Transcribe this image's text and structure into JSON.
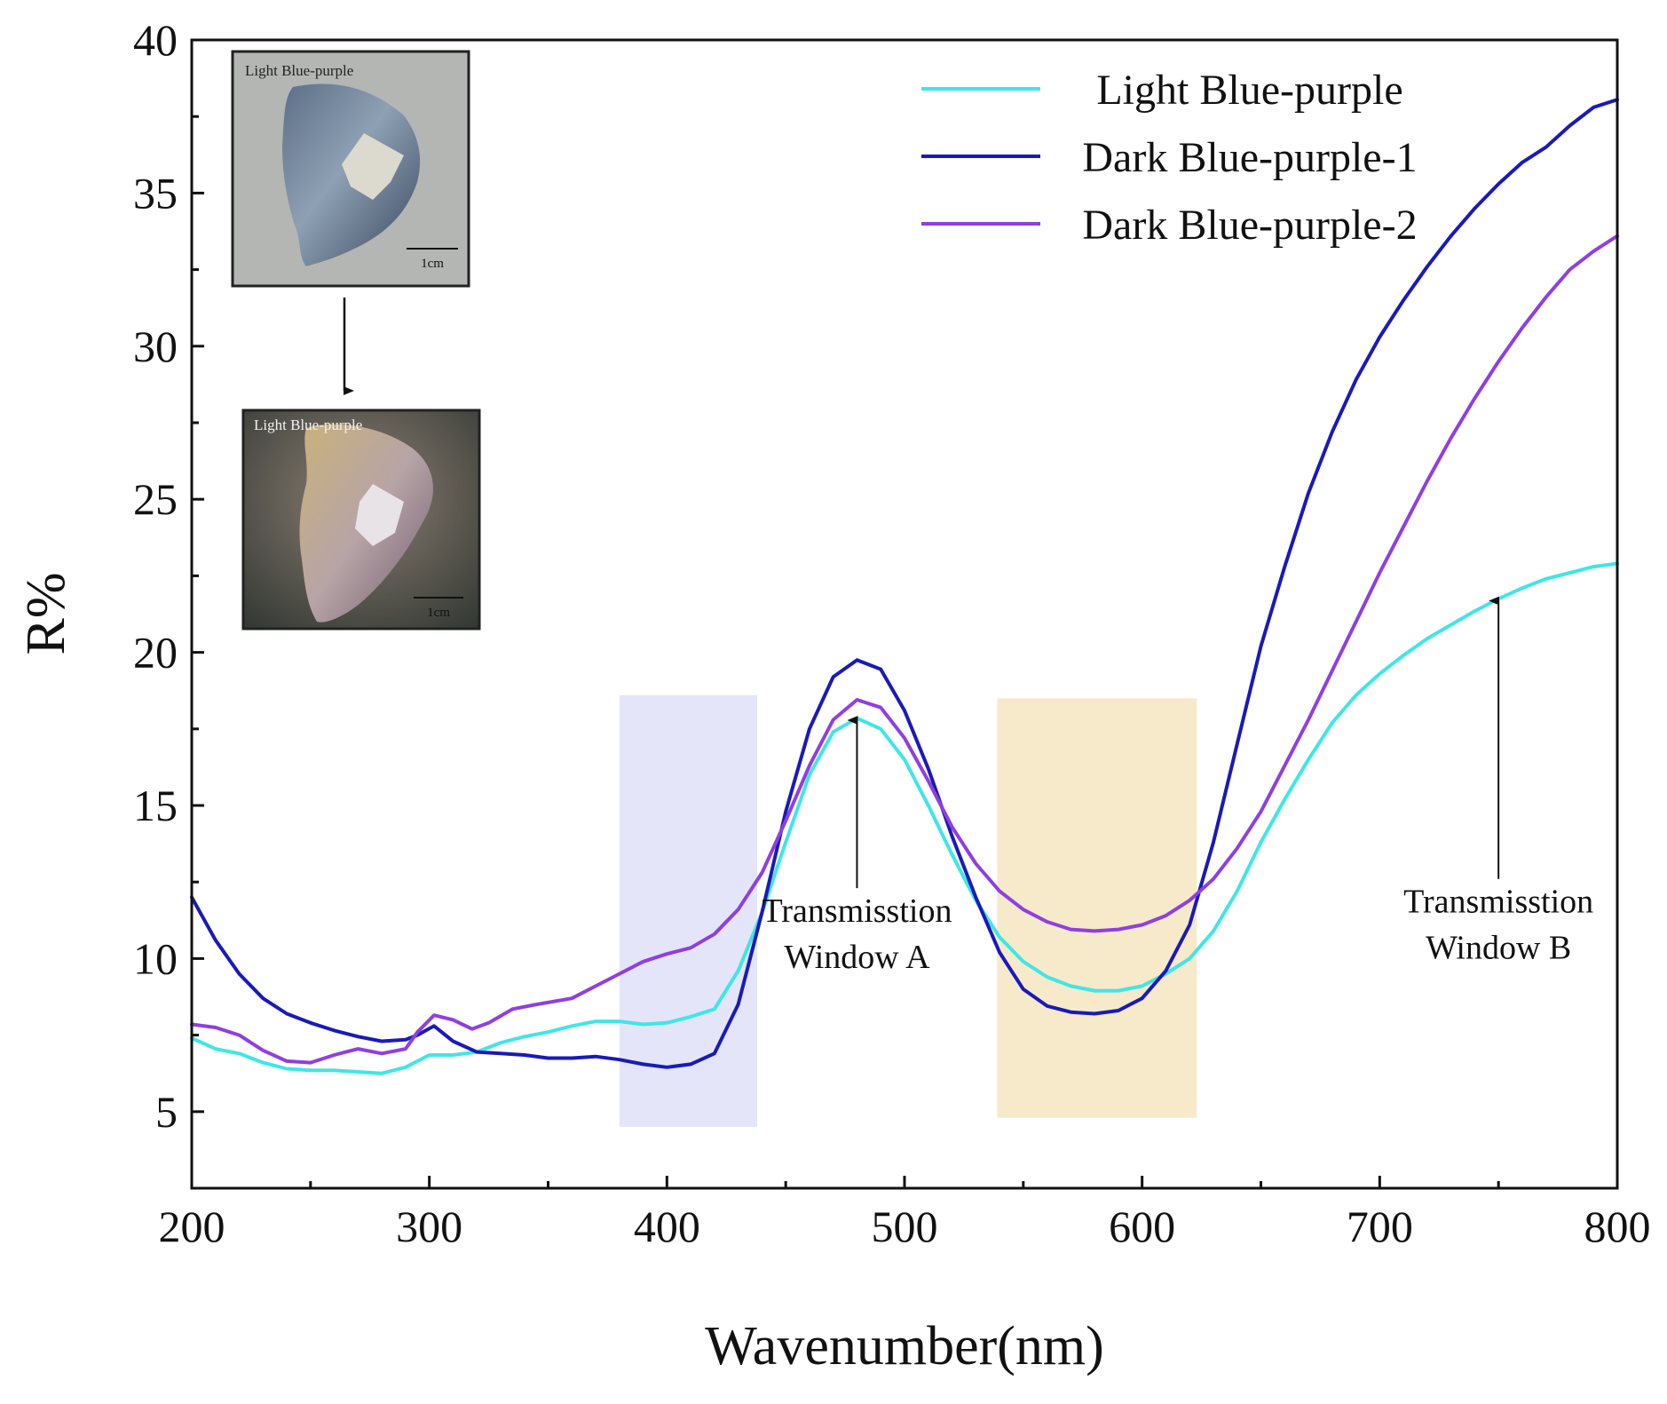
{
  "chart_data": {
    "type": "line",
    "title": "",
    "xlabel": "Wavenumber(nm)",
    "ylabel": "R%",
    "xlim": [
      200,
      800
    ],
    "ylim": [
      2.5,
      40
    ],
    "xticks": [
      200,
      300,
      400,
      500,
      600,
      700,
      800
    ],
    "yticks": [
      5,
      10,
      15,
      20,
      25,
      30,
      35,
      40
    ],
    "legend_position": "top-right",
    "series": [
      {
        "name": "Light Blue-purple",
        "color": "#40e6e6",
        "points": [
          [
            200,
            7.4
          ],
          [
            210,
            7.05
          ],
          [
            220,
            6.9
          ],
          [
            230,
            6.6
          ],
          [
            240,
            6.4
          ],
          [
            250,
            6.35
          ],
          [
            260,
            6.35
          ],
          [
            270,
            6.3
          ],
          [
            280,
            6.25
          ],
          [
            290,
            6.45
          ],
          [
            300,
            6.85
          ],
          [
            310,
            6.85
          ],
          [
            320,
            6.95
          ],
          [
            330,
            7.25
          ],
          [
            340,
            7.45
          ],
          [
            350,
            7.6
          ],
          [
            360,
            7.8
          ],
          [
            370,
            7.95
          ],
          [
            380,
            7.95
          ],
          [
            390,
            7.85
          ],
          [
            400,
            7.9
          ],
          [
            410,
            8.1
          ],
          [
            420,
            8.35
          ],
          [
            430,
            9.6
          ],
          [
            440,
            11.5
          ],
          [
            450,
            13.8
          ],
          [
            460,
            16.0
          ],
          [
            470,
            17.4
          ],
          [
            480,
            17.85
          ],
          [
            490,
            17.5
          ],
          [
            500,
            16.5
          ],
          [
            510,
            15.0
          ],
          [
            520,
            13.4
          ],
          [
            530,
            11.9
          ],
          [
            540,
            10.7
          ],
          [
            550,
            9.9
          ],
          [
            560,
            9.4
          ],
          [
            570,
            9.1
          ],
          [
            580,
            8.95
          ],
          [
            590,
            8.95
          ],
          [
            600,
            9.1
          ],
          [
            610,
            9.5
          ],
          [
            620,
            10.0
          ],
          [
            630,
            10.9
          ],
          [
            640,
            12.2
          ],
          [
            650,
            13.8
          ],
          [
            660,
            15.2
          ],
          [
            670,
            16.5
          ],
          [
            680,
            17.7
          ],
          [
            690,
            18.6
          ],
          [
            700,
            19.3
          ],
          [
            710,
            19.9
          ],
          [
            720,
            20.45
          ],
          [
            730,
            20.9
          ],
          [
            740,
            21.35
          ],
          [
            750,
            21.75
          ],
          [
            760,
            22.1
          ],
          [
            770,
            22.4
          ],
          [
            780,
            22.6
          ],
          [
            790,
            22.8
          ],
          [
            800,
            22.9
          ]
        ]
      },
      {
        "name": "Dark Blue-purple-1",
        "color": "#1a1ab8",
        "points": [
          [
            200,
            12.0
          ],
          [
            210,
            10.6
          ],
          [
            220,
            9.5
          ],
          [
            230,
            8.7
          ],
          [
            240,
            8.2
          ],
          [
            250,
            7.9
          ],
          [
            260,
            7.65
          ],
          [
            270,
            7.45
          ],
          [
            280,
            7.3
          ],
          [
            290,
            7.35
          ],
          [
            295,
            7.5
          ],
          [
            302,
            7.8
          ],
          [
            310,
            7.3
          ],
          [
            320,
            6.95
          ],
          [
            330,
            6.9
          ],
          [
            340,
            6.85
          ],
          [
            350,
            6.75
          ],
          [
            360,
            6.75
          ],
          [
            370,
            6.8
          ],
          [
            380,
            6.7
          ],
          [
            390,
            6.55
          ],
          [
            400,
            6.45
          ],
          [
            410,
            6.55
          ],
          [
            420,
            6.9
          ],
          [
            430,
            8.5
          ],
          [
            440,
            11.5
          ],
          [
            450,
            14.8
          ],
          [
            460,
            17.5
          ],
          [
            470,
            19.2
          ],
          [
            480,
            19.75
          ],
          [
            490,
            19.45
          ],
          [
            500,
            18.1
          ],
          [
            510,
            16.2
          ],
          [
            520,
            14.0
          ],
          [
            530,
            12.0
          ],
          [
            540,
            10.2
          ],
          [
            550,
            9.0
          ],
          [
            560,
            8.45
          ],
          [
            570,
            8.25
          ],
          [
            580,
            8.2
          ],
          [
            590,
            8.3
          ],
          [
            600,
            8.7
          ],
          [
            610,
            9.6
          ],
          [
            620,
            11.1
          ],
          [
            630,
            13.8
          ],
          [
            640,
            17.0
          ],
          [
            650,
            20.2
          ],
          [
            660,
            22.8
          ],
          [
            670,
            25.2
          ],
          [
            680,
            27.2
          ],
          [
            690,
            28.9
          ],
          [
            700,
            30.3
          ],
          [
            710,
            31.5
          ],
          [
            720,
            32.6
          ],
          [
            730,
            33.6
          ],
          [
            740,
            34.5
          ],
          [
            750,
            35.3
          ],
          [
            760,
            36.0
          ],
          [
            770,
            36.5
          ],
          [
            780,
            37.2
          ],
          [
            790,
            37.8
          ],
          [
            800,
            38.05
          ]
        ]
      },
      {
        "name": "Dark Blue-purple-2",
        "color": "#8f3fe0",
        "points": [
          [
            200,
            7.85
          ],
          [
            210,
            7.75
          ],
          [
            220,
            7.5
          ],
          [
            230,
            7.0
          ],
          [
            240,
            6.65
          ],
          [
            250,
            6.6
          ],
          [
            260,
            6.85
          ],
          [
            270,
            7.05
          ],
          [
            280,
            6.9
          ],
          [
            290,
            7.05
          ],
          [
            295,
            7.6
          ],
          [
            302,
            8.15
          ],
          [
            310,
            8.0
          ],
          [
            318,
            7.7
          ],
          [
            325,
            7.9
          ],
          [
            335,
            8.35
          ],
          [
            345,
            8.5
          ],
          [
            360,
            8.7
          ],
          [
            370,
            9.1
          ],
          [
            380,
            9.5
          ],
          [
            390,
            9.9
          ],
          [
            400,
            10.15
          ],
          [
            410,
            10.35
          ],
          [
            420,
            10.8
          ],
          [
            430,
            11.6
          ],
          [
            440,
            12.8
          ],
          [
            450,
            14.5
          ],
          [
            460,
            16.3
          ],
          [
            470,
            17.8
          ],
          [
            480,
            18.45
          ],
          [
            490,
            18.2
          ],
          [
            500,
            17.2
          ],
          [
            510,
            15.8
          ],
          [
            520,
            14.3
          ],
          [
            530,
            13.1
          ],
          [
            540,
            12.2
          ],
          [
            550,
            11.6
          ],
          [
            560,
            11.2
          ],
          [
            570,
            10.95
          ],
          [
            580,
            10.9
          ],
          [
            590,
            10.95
          ],
          [
            600,
            11.1
          ],
          [
            610,
            11.4
          ],
          [
            620,
            11.9
          ],
          [
            630,
            12.6
          ],
          [
            640,
            13.6
          ],
          [
            650,
            14.8
          ],
          [
            660,
            16.3
          ],
          [
            670,
            17.8
          ],
          [
            680,
            19.4
          ],
          [
            690,
            21.0
          ],
          [
            700,
            22.6
          ],
          [
            710,
            24.1
          ],
          [
            720,
            25.6
          ],
          [
            730,
            27.0
          ],
          [
            740,
            28.3
          ],
          [
            750,
            29.5
          ],
          [
            760,
            30.6
          ],
          [
            770,
            31.6
          ],
          [
            780,
            32.5
          ],
          [
            790,
            33.1
          ],
          [
            800,
            33.6
          ]
        ]
      }
    ],
    "highlight_bands": [
      {
        "x_range": [
          380,
          438
        ],
        "y_range": [
          4.5,
          18.6
        ],
        "color": "#e4e5f8"
      },
      {
        "x_range": [
          539,
          623
        ],
        "y_range": [
          4.8,
          18.5
        ],
        "color": "#f6eaca"
      }
    ],
    "annotations": [
      {
        "id": "window-a",
        "lines": [
          "Transmisstion",
          "Window A"
        ],
        "arrow_x": 480,
        "arrow_from_y": 12.3,
        "arrow_to_y": 17.9,
        "text_x": 480,
        "text_y_top": 11.2
      },
      {
        "id": "window-b",
        "lines": [
          "Transmisstion",
          "Window B"
        ],
        "arrow_x": 750,
        "arrow_from_y": 12.6,
        "arrow_to_y": 21.8,
        "text_x": 750,
        "text_y_top": 11.5
      }
    ],
    "inset_photos": [
      {
        "label": "Light Blue-purple",
        "scale_text": "1cm"
      },
      {
        "label": "Light Blue-purple",
        "scale_text": "1cm"
      }
    ]
  }
}
